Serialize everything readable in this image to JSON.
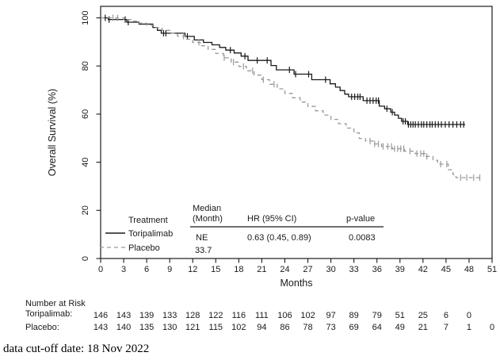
{
  "chart_data": {
    "type": "line",
    "subtype": "kaplan-meier-step",
    "title": "",
    "xlabel": "Months",
    "ylabel": "Overall Survival (%)",
    "xlim": [
      0,
      51
    ],
    "ylim": [
      0,
      100
    ],
    "grid": false,
    "legend_position": "inside-bottom-left",
    "x_ticks": [
      0,
      3,
      6,
      9,
      12,
      15,
      18,
      21,
      24,
      27,
      30,
      33,
      36,
      39,
      42,
      45,
      48,
      51
    ],
    "y_ticks": [
      0,
      20,
      40,
      60,
      80,
      100
    ],
    "series": [
      {
        "name": "Toripalimab",
        "color": "#1a1a1a",
        "dash": "solid",
        "steps": [
          [
            0,
            100
          ],
          [
            1,
            99.3
          ],
          [
            3.4,
            98.2
          ],
          [
            5,
            97.4
          ],
          [
            6.8,
            96
          ],
          [
            7.4,
            94.8
          ],
          [
            7.9,
            93.6
          ],
          [
            11,
            92.3
          ],
          [
            12.2,
            90.8
          ],
          [
            13.4,
            89.8
          ],
          [
            14.5,
            88.8
          ],
          [
            15.5,
            87.7
          ],
          [
            16.3,
            86.6
          ],
          [
            17.4,
            85.4
          ],
          [
            18.3,
            84.1
          ],
          [
            19.2,
            82.3
          ],
          [
            22.2,
            80.2
          ],
          [
            22.9,
            78.4
          ],
          [
            25.2,
            76.6
          ],
          [
            27.5,
            74.3
          ],
          [
            29.9,
            72.6
          ],
          [
            30.6,
            71.2
          ],
          [
            31.2,
            69.8
          ],
          [
            31.8,
            68.3
          ],
          [
            32.3,
            67.2
          ],
          [
            34.2,
            65.6
          ],
          [
            36.3,
            63.3
          ],
          [
            37,
            62.2
          ],
          [
            37.8,
            60.8
          ],
          [
            38.3,
            59.6
          ],
          [
            38.8,
            58.3
          ],
          [
            39.2,
            57
          ],
          [
            40,
            55.7
          ],
          [
            47.5,
            55.7
          ]
        ],
        "censor_months": [
          0.6,
          1.1,
          3.2,
          3.6,
          8.2,
          8.5,
          11.3,
          16.9,
          18.8,
          20.4,
          21.7,
          24.6,
          25.4,
          27.1,
          29.3,
          32.7,
          33.1,
          33.5,
          33.8,
          34.7,
          35.1,
          35.5,
          35.9,
          36.2,
          37.3,
          38.0,
          39.4,
          39.7,
          40.1,
          40.4,
          40.7,
          41.0,
          41.4,
          41.8,
          42.1,
          42.5,
          42.9,
          43.2,
          43.6,
          44.0,
          44.4,
          44.9,
          45.4,
          45.9,
          46.4,
          46.9,
          47.3
        ]
      },
      {
        "name": "Placebo",
        "color": "#999999",
        "dash": "dashed",
        "steps": [
          [
            0,
            100
          ],
          [
            3,
            99.3
          ],
          [
            4,
            98.6
          ],
          [
            5,
            97.8
          ],
          [
            6,
            96.9
          ],
          [
            7,
            95.9
          ],
          [
            8,
            94.8
          ],
          [
            9,
            93.6
          ],
          [
            10,
            92.4
          ],
          [
            11,
            91.1
          ],
          [
            12,
            89.8
          ],
          [
            13,
            88.4
          ],
          [
            14,
            86.9
          ],
          [
            15,
            85.2
          ],
          [
            16,
            83.4
          ],
          [
            17,
            81.6
          ],
          [
            18,
            79.8
          ],
          [
            19,
            78
          ],
          [
            20,
            76.2
          ],
          [
            21,
            74.3
          ],
          [
            22,
            72.4
          ],
          [
            23,
            70.5
          ],
          [
            24,
            68.6
          ],
          [
            25,
            66.8
          ],
          [
            26,
            65
          ],
          [
            27,
            63.2
          ],
          [
            28,
            61.4
          ],
          [
            29,
            59.6
          ],
          [
            30,
            57.8
          ],
          [
            31,
            56
          ],
          [
            32,
            54.2
          ],
          [
            33,
            52.2
          ],
          [
            33.7,
            49.9
          ],
          [
            34.5,
            48.8
          ],
          [
            35.5,
            47.6
          ],
          [
            36.6,
            46.6
          ],
          [
            38,
            45.6
          ],
          [
            39.6,
            44.6
          ],
          [
            41,
            43.6
          ],
          [
            42.4,
            42.4
          ],
          [
            43.3,
            40.8
          ],
          [
            43.9,
            39.2
          ],
          [
            45.3,
            36.9
          ],
          [
            45.9,
            34.9
          ],
          [
            46.3,
            33.6
          ],
          [
            49.5,
            33.6
          ]
        ],
        "censor_months": [
          1.6,
          2.2,
          10.8,
          12.8,
          16.1,
          17.3,
          18.6,
          19.8,
          21.2,
          22.6,
          35.1,
          35.7,
          36.2,
          36.8,
          37.4,
          37.9,
          38.3,
          38.7,
          39.1,
          39.5,
          40.3,
          41.2,
          41.7,
          42.1,
          42.5,
          44.3,
          45.1,
          46.9,
          47.7,
          48.6,
          49.4
        ]
      }
    ]
  },
  "legend": {
    "title": "Treatment",
    "items": [
      {
        "label": "Toripalimab",
        "swatch": "solid-black-line"
      },
      {
        "label": "Placebo",
        "swatch": "dashed-gray-line"
      }
    ]
  },
  "stats_table": {
    "col1_header_line1": "Median",
    "col1_header_line2": "(Month)",
    "col2_header": "HR (95% CI)",
    "col3_header": "p-value",
    "toripalimab_median": "NE",
    "placebo_median": "33.7",
    "hr_value": "0.63 (0.45, 0.89)",
    "p_value": "0.0083"
  },
  "risk_table": {
    "title": "Number at Risk",
    "rows": [
      {
        "label": "Toripalimab:",
        "values": [
          146,
          143,
          139,
          133,
          128,
          122,
          116,
          111,
          106,
          102,
          97,
          89,
          79,
          51,
          25,
          6,
          0
        ]
      },
      {
        "label": "Placebo:",
        "values": [
          143,
          140,
          135,
          130,
          121,
          115,
          102,
          94,
          86,
          78,
          73,
          69,
          64,
          49,
          21,
          7,
          1,
          0
        ]
      }
    ]
  },
  "footer": {
    "note": "data cut-off date: 18 Nov 2022"
  }
}
